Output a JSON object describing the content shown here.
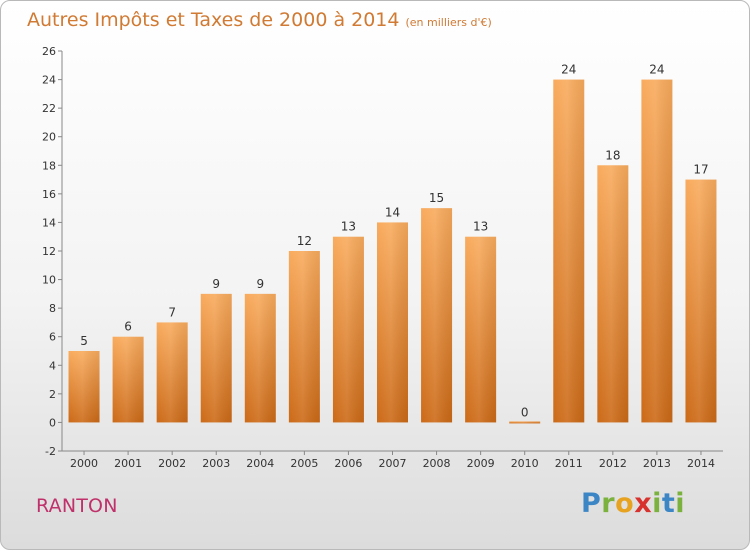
{
  "title": "Autres Impôts et Taxes de 2000 à 2014",
  "subtitle": "(en milliers d'€)",
  "commune": "RANTON",
  "logo": "Proxiti",
  "colors": {
    "bar_light": "#f8a85a",
    "bar_dark": "#cf6f1c",
    "title": "#d07a33",
    "commune": "#c0306a"
  },
  "chart_data": {
    "type": "bar",
    "title": "Autres Impôts et Taxes de 2000 à 2014",
    "subtitle": "(en milliers d'€)",
    "categories": [
      "2000",
      "2001",
      "2002",
      "2003",
      "2004",
      "2005",
      "2006",
      "2007",
      "2008",
      "2009",
      "2010",
      "2011",
      "2012",
      "2013",
      "2014"
    ],
    "values": [
      5,
      6,
      7,
      9,
      9,
      12,
      13,
      14,
      15,
      13,
      0,
      24,
      18,
      24,
      17
    ],
    "xlabel": "",
    "ylabel": "",
    "ylim": [
      -2,
      26
    ],
    "yticks": [
      -2,
      0,
      2,
      4,
      6,
      8,
      10,
      12,
      14,
      16,
      18,
      20,
      22,
      24,
      26
    ],
    "grid": false,
    "legend": "none"
  }
}
